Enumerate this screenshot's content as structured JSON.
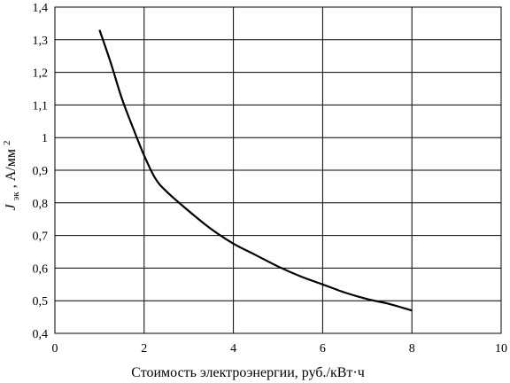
{
  "chart_data": {
    "type": "line",
    "title": "",
    "xlabel": "Стоимость электроэнергии, руб./кВт·ч",
    "ylabel": {
      "symbol": "J",
      "subscript": "эк",
      "unit_prefix": ", А/мм",
      "unit_superscript": "2"
    },
    "xlim": [
      0,
      10
    ],
    "ylim": [
      0.4,
      1.4
    ],
    "grid": true,
    "x_ticks": [
      {
        "value": 0,
        "label": "0"
      },
      {
        "value": 2,
        "label": "2"
      },
      {
        "value": 4,
        "label": "4"
      },
      {
        "value": 6,
        "label": "6"
      },
      {
        "value": 8,
        "label": "8"
      },
      {
        "value": 10,
        "label": "10"
      }
    ],
    "y_ticks": [
      {
        "value": 0.4,
        "label": "0,4"
      },
      {
        "value": 0.5,
        "label": "0,5"
      },
      {
        "value": 0.6,
        "label": "0,6"
      },
      {
        "value": 0.7,
        "label": "0,7"
      },
      {
        "value": 0.8,
        "label": "0,8"
      },
      {
        "value": 0.9,
        "label": "0,9"
      },
      {
        "value": 1.0,
        "label": "1"
      },
      {
        "value": 1.1,
        "label": "1,1"
      },
      {
        "value": 1.2,
        "label": "1,2"
      },
      {
        "value": 1.3,
        "label": "1,3"
      },
      {
        "value": 1.4,
        "label": "1,4"
      }
    ],
    "series": [
      {
        "color": "#000000",
        "x": [
          1.0,
          1.25,
          1.5,
          1.75,
          2.0,
          2.25,
          2.5,
          3.0,
          3.5,
          4.0,
          4.5,
          5.0,
          5.5,
          6.0,
          6.5,
          7.0,
          7.5,
          8.0
        ],
        "y": [
          1.33,
          1.23,
          1.12,
          1.03,
          0.945,
          0.875,
          0.835,
          0.775,
          0.72,
          0.675,
          0.64,
          0.605,
          0.575,
          0.55,
          0.525,
          0.505,
          0.49,
          0.47
        ]
      }
    ]
  }
}
